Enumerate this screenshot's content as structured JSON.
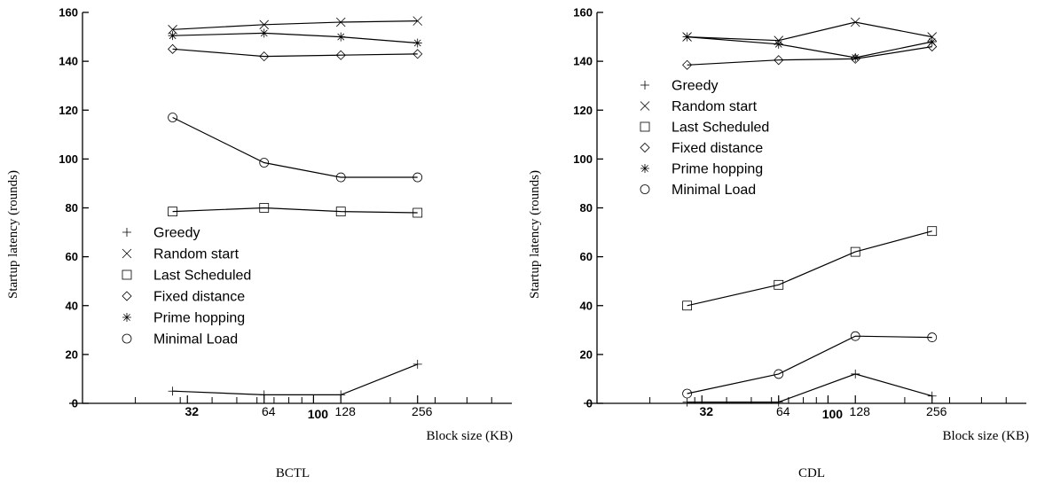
{
  "chart_data": [
    {
      "type": "line",
      "caption": "BCTL",
      "xlabel": "Block size (KB)",
      "ylabel": "Startup latency (rounds)",
      "xscale": "log",
      "xlim": [
        11,
        600
      ],
      "ylim": [
        0,
        160
      ],
      "yticks": [
        0,
        20,
        40,
        60,
        80,
        100,
        120,
        140,
        160
      ],
      "xtick_labels": [
        {
          "value": 32,
          "label": "32",
          "bold": true
        },
        {
          "value": 64,
          "label": "64",
          "bold": false
        },
        {
          "value": 100,
          "label": "100",
          "bold": true
        },
        {
          "value": 128,
          "label": "128",
          "bold": false
        },
        {
          "value": 256,
          "label": "256",
          "bold": false
        }
      ],
      "xtick_minor": [
        20,
        30,
        40,
        50,
        60,
        70,
        80,
        90,
        100,
        200,
        300,
        400,
        500
      ],
      "x": [
        28,
        64,
        128,
        256
      ],
      "series": [
        {
          "name": "Greedy",
          "marker": "plus",
          "values": [
            5,
            3.5,
            3.5,
            16
          ]
        },
        {
          "name": "Random start",
          "marker": "x",
          "values": [
            153,
            155,
            156,
            156.5
          ]
        },
        {
          "name": "Last Scheduled",
          "marker": "square",
          "values": [
            78.5,
            80,
            78.5,
            78
          ]
        },
        {
          "name": "Fixed distance",
          "marker": "diamond",
          "values": [
            145,
            142,
            142.5,
            143
          ]
        },
        {
          "name": "Prime hopping",
          "marker": "asterisk",
          "values": [
            150.5,
            151.5,
            150,
            147.5
          ]
        },
        {
          "name": "Minimal Load",
          "marker": "circle",
          "values": [
            117,
            98.5,
            92.5,
            92.5
          ]
        }
      ],
      "legend": "center-left",
      "grid": false
    },
    {
      "type": "line",
      "caption": "CDL",
      "xlabel": "Block size (KB)",
      "ylabel": "Startup latency (rounds)",
      "xscale": "log",
      "xlim": [
        11,
        600
      ],
      "ylim": [
        0,
        160
      ],
      "yticks": [
        0,
        20,
        40,
        60,
        80,
        100,
        120,
        140,
        160
      ],
      "xtick_labels": [
        {
          "value": 32,
          "label": "32",
          "bold": true
        },
        {
          "value": 64,
          "label": "64",
          "bold": false
        },
        {
          "value": 100,
          "label": "100",
          "bold": true
        },
        {
          "value": 128,
          "label": "128",
          "bold": false
        },
        {
          "value": 256,
          "label": "256",
          "bold": false
        }
      ],
      "xtick_minor": [
        20,
        30,
        40,
        50,
        60,
        70,
        80,
        90,
        100,
        200,
        300,
        400,
        500
      ],
      "x": [
        28,
        64,
        128,
        256
      ],
      "series": [
        {
          "name": "Greedy",
          "marker": "plus",
          "values": [
            0.5,
            0.5,
            12,
            3
          ]
        },
        {
          "name": "Random start",
          "marker": "x",
          "values": [
            150,
            148.5,
            156,
            150
          ]
        },
        {
          "name": "Last Scheduled",
          "marker": "square",
          "values": [
            40,
            48.5,
            62,
            70.5
          ]
        },
        {
          "name": "Fixed distance",
          "marker": "diamond",
          "values": [
            138.5,
            140.5,
            141,
            146
          ]
        },
        {
          "name": "Prime hopping",
          "marker": "asterisk",
          "values": [
            150,
            147,
            141.5,
            148
          ]
        },
        {
          "name": "Minimal Load",
          "marker": "circle",
          "values": [
            4,
            12,
            27.5,
            27
          ]
        }
      ],
      "legend": "upper-left",
      "grid": false
    }
  ]
}
